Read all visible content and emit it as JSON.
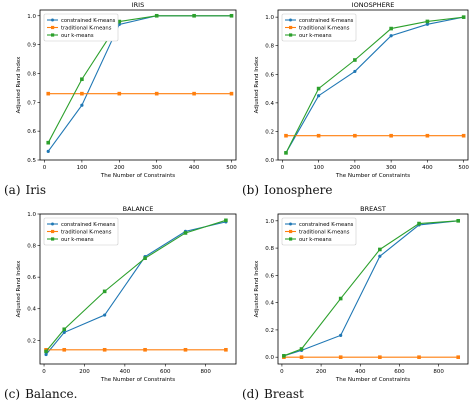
{
  "panels": [
    {
      "caption_tag": "(a)",
      "caption_text": "Iris"
    },
    {
      "caption_tag": "(b)",
      "caption_text": "Ionosphere"
    },
    {
      "caption_tag": "(c)",
      "caption_text": "Balance."
    },
    {
      "caption_tag": "(d)",
      "caption_text": "Breast"
    }
  ],
  "chart_data": [
    {
      "type": "line",
      "title": "IRIS",
      "xlabel": "The Number of Constraints",
      "ylabel": "Adjusted Rand Index",
      "xlim": [
        -12,
        512
      ],
      "ylim": [
        0.5,
        1.02
      ],
      "xticks": [
        0,
        100,
        200,
        300,
        400,
        500
      ],
      "yticks": [
        0.5,
        0.6,
        0.7,
        0.8,
        0.9,
        1.0
      ],
      "ytick_labels": [
        "0.5",
        "0.6",
        "0.7",
        "0.8",
        "0.9",
        "1.0"
      ],
      "legend": "top-left",
      "grid": false,
      "series": [
        {
          "name": "constrained K-means",
          "color": "#1f77b4",
          "marker": "dot",
          "x": [
            10,
            100,
            200,
            300,
            400,
            500
          ],
          "values": [
            0.53,
            0.69,
            0.97,
            1.0,
            1.0,
            1.0
          ]
        },
        {
          "name": "traditional K-means",
          "color": "#ff7f0e",
          "marker": "square",
          "x": [
            10,
            100,
            200,
            300,
            400,
            500
          ],
          "values": [
            0.73,
            0.73,
            0.73,
            0.73,
            0.73,
            0.73
          ]
        },
        {
          "name": "our k-means",
          "color": "#2ca02c",
          "marker": "square",
          "x": [
            10,
            100,
            200,
            300,
            400,
            500
          ],
          "values": [
            0.56,
            0.78,
            0.98,
            1.0,
            1.0,
            1.0
          ]
        }
      ]
    },
    {
      "type": "line",
      "title": "IONOSPHERE",
      "xlabel": "The Number of Constraints",
      "ylabel": "Adjusted Rand Index",
      "xlim": [
        -12,
        512
      ],
      "ylim": [
        0.0,
        1.05
      ],
      "xticks": [
        0,
        100,
        200,
        300,
        400,
        500
      ],
      "yticks": [
        0.0,
        0.2,
        0.4,
        0.6,
        0.8,
        1.0
      ],
      "ytick_labels": [
        "0.0",
        "0.2",
        "0.4",
        "0.6",
        "0.8",
        "1.0"
      ],
      "legend": "top-left",
      "grid": false,
      "series": [
        {
          "name": "constrained K-means",
          "color": "#1f77b4",
          "marker": "dot",
          "x": [
            10,
            100,
            200,
            300,
            400,
            500
          ],
          "values": [
            0.05,
            0.45,
            0.62,
            0.87,
            0.95,
            1.0
          ]
        },
        {
          "name": "traditional K-means",
          "color": "#ff7f0e",
          "marker": "square",
          "x": [
            10,
            100,
            200,
            300,
            400,
            500
          ],
          "values": [
            0.17,
            0.17,
            0.17,
            0.17,
            0.17,
            0.17
          ]
        },
        {
          "name": "our k-means",
          "color": "#2ca02c",
          "marker": "square",
          "x": [
            10,
            100,
            200,
            300,
            400,
            500
          ],
          "values": [
            0.05,
            0.5,
            0.7,
            0.92,
            0.97,
            1.0
          ]
        }
      ]
    },
    {
      "type": "line",
      "title": "BALANCE",
      "xlabel": "The Number of Constraints",
      "ylabel": "Adjusted Rand Index",
      "xlim": [
        -20,
        950
      ],
      "ylim": [
        0.05,
        1.0
      ],
      "xticks": [
        0,
        200,
        400,
        600,
        800
      ],
      "yticks": [
        0.2,
        0.4,
        0.6,
        0.8,
        1.0
      ],
      "ytick_labels": [
        "0.2",
        "0.4",
        "0.6",
        "0.8",
        "1.0"
      ],
      "legend": "top-left",
      "grid": false,
      "series": [
        {
          "name": "constrained K-means",
          "color": "#1f77b4",
          "marker": "dot",
          "x": [
            10,
            100,
            300,
            500,
            700,
            900
          ],
          "values": [
            0.11,
            0.25,
            0.36,
            0.73,
            0.89,
            0.95
          ]
        },
        {
          "name": "traditional K-means",
          "color": "#ff7f0e",
          "marker": "square",
          "x": [
            10,
            100,
            300,
            500,
            700,
            900
          ],
          "values": [
            0.14,
            0.14,
            0.14,
            0.14,
            0.14,
            0.14
          ]
        },
        {
          "name": "our k-means",
          "color": "#2ca02c",
          "marker": "square",
          "x": [
            10,
            100,
            300,
            500,
            700,
            900
          ],
          "values": [
            0.13,
            0.27,
            0.51,
            0.72,
            0.88,
            0.96
          ]
        }
      ]
    },
    {
      "type": "line",
      "title": "BREAST",
      "xlabel": "The Number of Constraints",
      "ylabel": "Adjusted Rand Index",
      "xlim": [
        -20,
        950
      ],
      "ylim": [
        -0.05,
        1.05
      ],
      "xticks": [
        0,
        200,
        400,
        600,
        800
      ],
      "yticks": [
        0.0,
        0.2,
        0.4,
        0.6,
        0.8,
        1.0
      ],
      "ytick_labels": [
        "0.0",
        "0.2",
        "0.4",
        "0.6",
        "0.8",
        "1.0"
      ],
      "legend": "top-left",
      "grid": false,
      "series": [
        {
          "name": "constrained K-means",
          "color": "#1f77b4",
          "marker": "dot",
          "x": [
            10,
            100,
            300,
            500,
            700,
            900
          ],
          "values": [
            0.01,
            0.05,
            0.16,
            0.74,
            0.97,
            1.0
          ]
        },
        {
          "name": "traditional K-means",
          "color": "#ff7f0e",
          "marker": "square",
          "x": [
            10,
            100,
            300,
            500,
            700,
            900
          ],
          "values": [
            0.0,
            0.0,
            0.0,
            0.0,
            0.0,
            0.0
          ]
        },
        {
          "name": "our k-means",
          "color": "#2ca02c",
          "marker": "square",
          "x": [
            10,
            100,
            300,
            500,
            700,
            900
          ],
          "values": [
            0.01,
            0.06,
            0.43,
            0.79,
            0.98,
            1.0
          ]
        }
      ]
    }
  ]
}
